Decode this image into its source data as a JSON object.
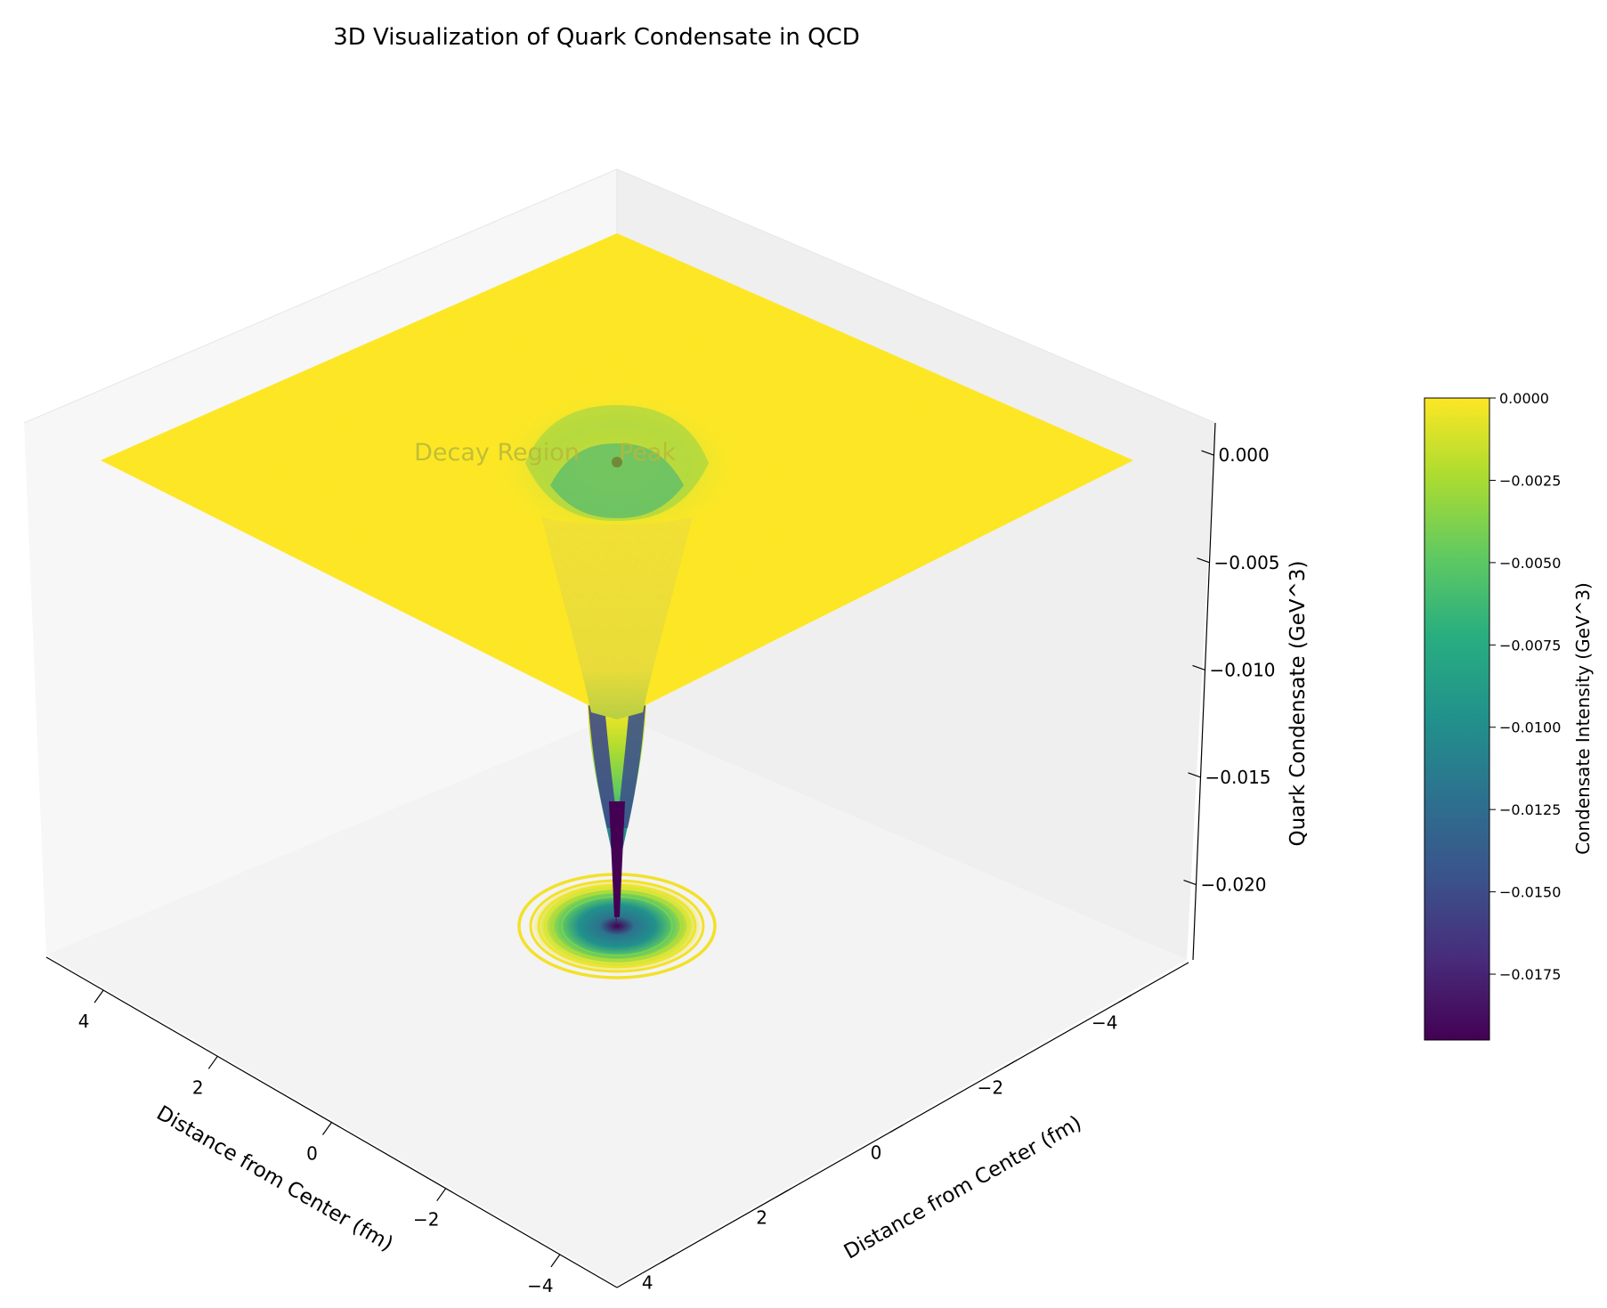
{
  "chart_data": {
    "type": "surface3d",
    "title": "3D Visualization of Quark Condensate in QCD",
    "xlabel": "Distance from Center (fm)",
    "ylabel": "Distance from Center (fm)",
    "zlabel": "Quark Condensate (GeV^3)",
    "xlim": [
      -5,
      5
    ],
    "ylim": [
      -5,
      5
    ],
    "zlim": [
      -0.0235,
      0.0015
    ],
    "x_ticks": [
      "4",
      "2",
      "0",
      "−2",
      "−4"
    ],
    "y_ticks": [
      "−4",
      "−2",
      "0",
      "2",
      "4"
    ],
    "z_ticks": [
      "0.000",
      "−0.005",
      "−0.010",
      "−0.015",
      "−0.020"
    ],
    "surface": {
      "function": "condensate minimum at center, decaying to 0 at large distance",
      "min_value": -0.0195,
      "max_value": 0.0
    },
    "contour": {
      "offset": "floor",
      "levels_shown": true
    },
    "annotations": [
      {
        "text": "Decay Region",
        "x": 2,
        "y": -2,
        "z": 0.0
      },
      {
        "text": "Peak",
        "x": 0,
        "y": 0,
        "z": 0.0
      }
    ],
    "colorbar": {
      "label": "Condensate Intensity (GeV^3)",
      "colormap": "viridis",
      "range": [
        -0.0195,
        0.0
      ],
      "ticks": [
        "0.0000",
        "−0.0025",
        "−0.0050",
        "−0.0075",
        "−0.0100",
        "−0.0125",
        "−0.0150",
        "−0.0175"
      ],
      "tick_values": [
        0.0,
        -0.0025,
        -0.005,
        -0.0075,
        -0.01,
        -0.0125,
        -0.015,
        -0.0175
      ]
    },
    "grid": false,
    "colors": {
      "flat_surface": "#fde725",
      "pane_back": "#f2f2f2",
      "pane_floor": "#f4f4f4"
    }
  }
}
